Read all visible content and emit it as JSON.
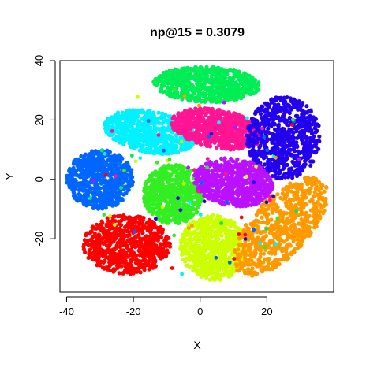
{
  "chart_data": {
    "type": "scatter",
    "title": "np@15 = 0.3079",
    "xlabel": "X",
    "ylabel": "Y",
    "xlim": [
      -42,
      40
    ],
    "ylim": [
      -38,
      40
    ],
    "x_ticks": [
      -40,
      -20,
      0,
      20
    ],
    "y_ticks": [
      -20,
      0,
      20,
      40
    ],
    "grid": false,
    "legend": "none",
    "clusters": [
      {
        "color": "#00EE55",
        "center": [
          2,
          32
        ],
        "half_width": 16,
        "half_height": 6,
        "rotation_deg": -2
      },
      {
        "color": "#00F2FF",
        "center": [
          -15,
          16
        ],
        "half_width": 14,
        "half_height": 7,
        "rotation_deg": -12
      },
      {
        "color": "#FF1493",
        "center": [
          5,
          17
        ],
        "half_width": 14,
        "half_height": 6.5,
        "rotation_deg": -12
      },
      {
        "color": "#2200EE",
        "center": [
          25,
          14
        ],
        "half_width": 11,
        "half_height": 14,
        "rotation_deg": 0
      },
      {
        "color": "#0066FF",
        "center": [
          -30,
          0
        ],
        "half_width": 10,
        "half_height": 10,
        "rotation_deg": 0
      },
      {
        "color": "#33EE22",
        "center": [
          -8,
          -5
        ],
        "half_width": 9,
        "half_height": 10,
        "rotation_deg": 0
      },
      {
        "color": "#BB11FF",
        "center": [
          10,
          -1
        ],
        "half_width": 12,
        "half_height": 8,
        "rotation_deg": -10
      },
      {
        "color": "#FF0000",
        "center": [
          -22,
          -22
        ],
        "half_width": 13,
        "half_height": 10,
        "rotation_deg": 0
      },
      {
        "color": "#CCFF00",
        "center": [
          4,
          -23
        ],
        "half_width": 10,
        "half_height": 11,
        "rotation_deg": 10
      },
      {
        "color": "#FF9900",
        "center": [
          24,
          -16
        ],
        "half_width": 9,
        "half_height": 20,
        "rotation_deg": -38
      }
    ]
  }
}
